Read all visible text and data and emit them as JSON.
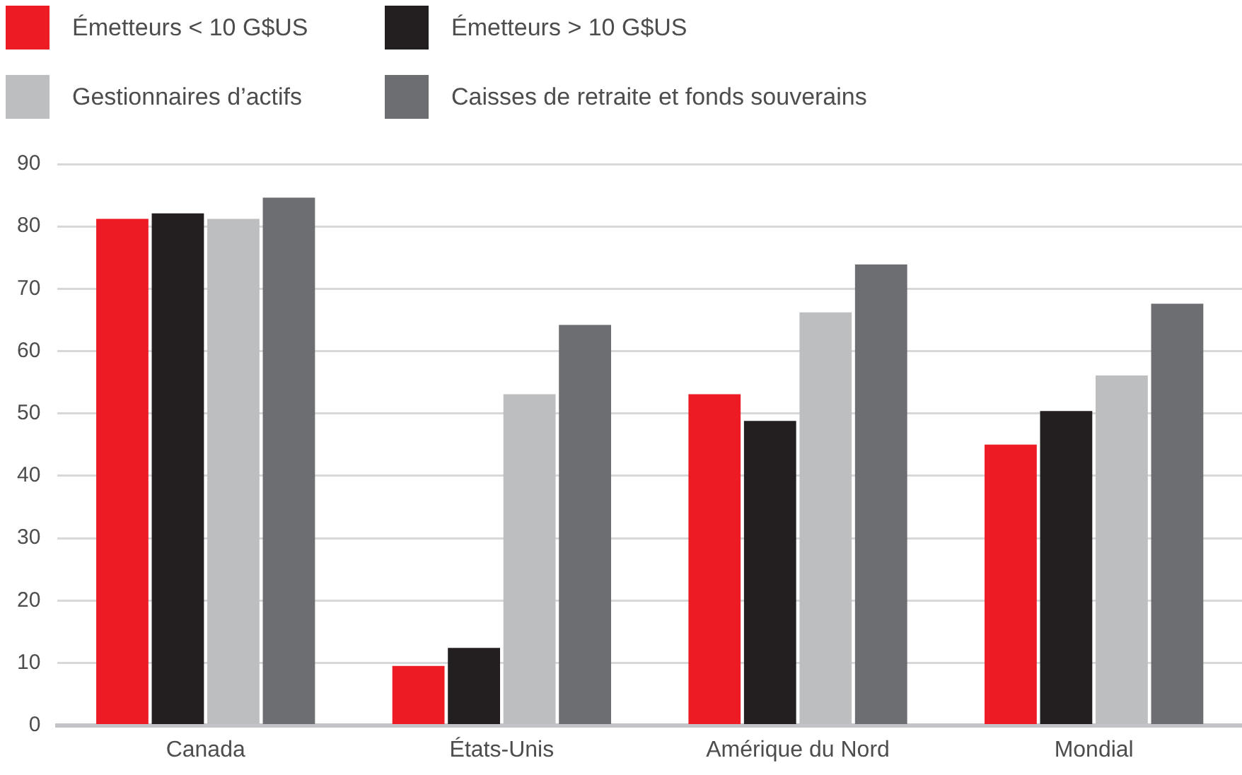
{
  "chart_data": {
    "type": "bar",
    "categories": [
      "Canada",
      "États-Unis",
      "Amérique du Nord",
      "Mondial"
    ],
    "series": [
      {
        "name": "Émetteurs < 10 G$US",
        "color": "#ed1c24",
        "values": [
          81.2,
          9.5,
          53.1,
          45.0
        ]
      },
      {
        "name": "Émetteurs > 10 G$US",
        "color": "#231f20",
        "values": [
          82.1,
          12.4,
          48.8,
          50.4
        ]
      },
      {
        "name": "Gestionnaires d’actifs",
        "color": "#bcbec0",
        "values": [
          81.2,
          53.1,
          66.2,
          56.1
        ]
      },
      {
        "name": "Caisses de retraite et fonds souverains",
        "color": "#6d6e71",
        "values": [
          84.6,
          64.2,
          73.9,
          67.6
        ]
      }
    ],
    "ylim": [
      0,
      90
    ],
    "yticks": [
      0,
      10,
      20,
      30,
      40,
      50,
      60,
      70,
      80,
      90
    ],
    "grid": "y",
    "legend": "top left"
  }
}
